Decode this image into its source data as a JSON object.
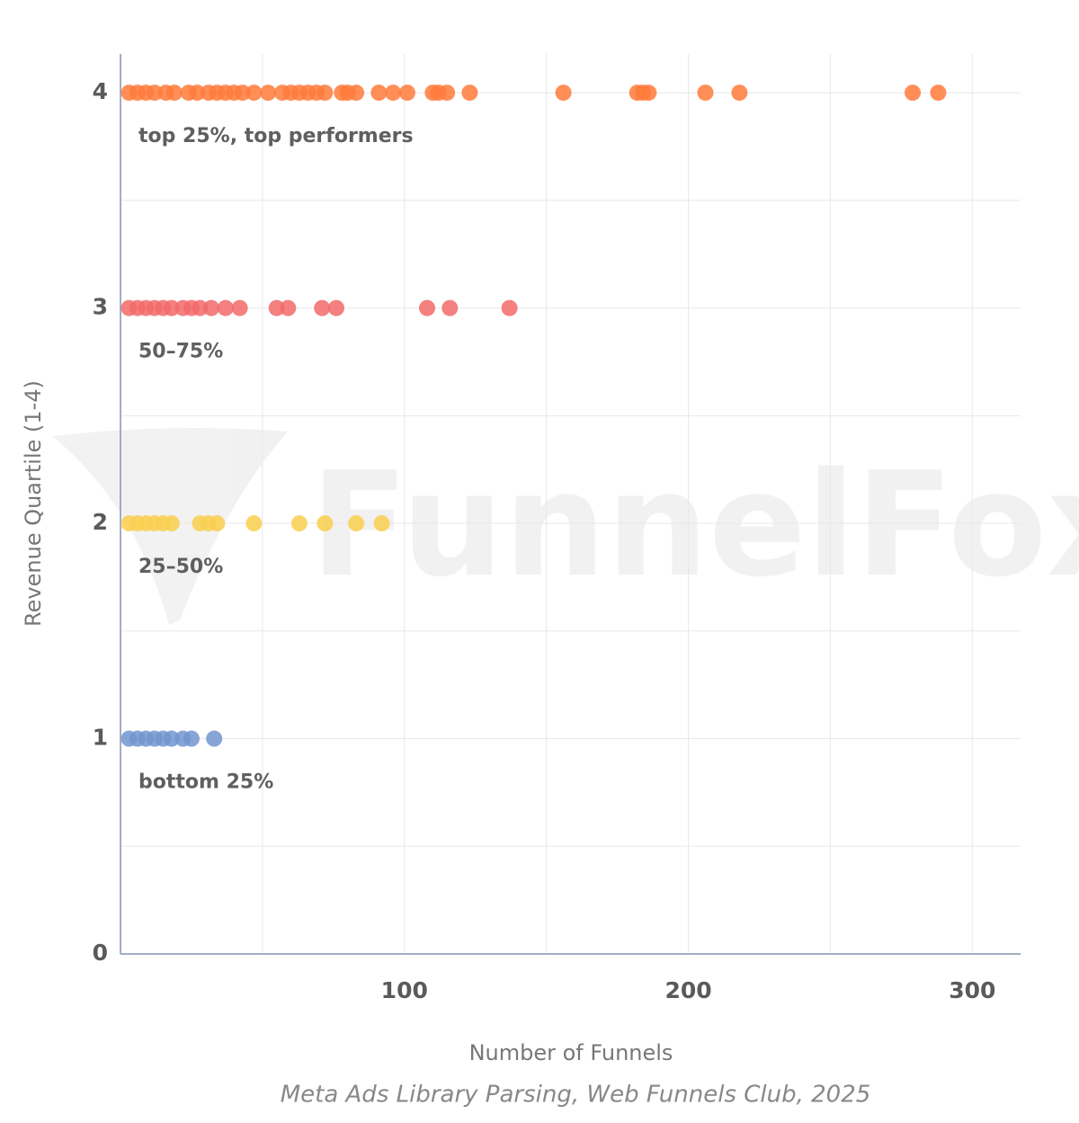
{
  "chart_data": {
    "type": "scatter",
    "xlabel": "Number of Funnels",
    "ylabel": "Revenue Quartile (1-4)",
    "source": "Meta Ads Library Parsing, Web Funnels Club, 2025",
    "watermark": "FunnelFox",
    "xlim": [
      0,
      317
    ],
    "xticks": [
      100,
      200,
      300
    ],
    "xgrid_ticks": [
      50,
      100,
      150,
      200,
      250,
      300
    ],
    "ylim": [
      0,
      4.18
    ],
    "yticks": [
      0,
      1,
      2,
      3,
      4
    ],
    "ygrid_ticks": [
      0.5,
      1,
      1.5,
      2,
      2.5,
      3,
      3.5,
      4
    ],
    "grid": true,
    "series": [
      {
        "label": "top 25%, top performers",
        "color": "#ff7a3a",
        "x": [
          3,
          6,
          9,
          12,
          16,
          19,
          24,
          27,
          31,
          34,
          37,
          40,
          43,
          47,
          52,
          57,
          60,
          63,
          66,
          69,
          72,
          78,
          80,
          83,
          91,
          96,
          101,
          110,
          112,
          115,
          123,
          156,
          182,
          184,
          186,
          206,
          218,
          279,
          288
        ],
        "values": [
          4,
          4,
          4,
          4,
          4,
          4,
          4,
          4,
          4,
          4,
          4,
          4,
          4,
          4,
          4,
          4,
          4,
          4,
          4,
          4,
          4,
          4,
          4,
          4,
          4,
          4,
          4,
          4,
          4,
          4,
          4,
          4,
          4,
          4,
          4,
          4,
          4,
          4,
          4
        ]
      },
      {
        "label": "50–75%",
        "color": "#f26a6a",
        "x": [
          3,
          6,
          9,
          12,
          15,
          18,
          22,
          25,
          28,
          32,
          37,
          42,
          55,
          59,
          71,
          76,
          108,
          116,
          137
        ],
        "values": [
          3,
          3,
          3,
          3,
          3,
          3,
          3,
          3,
          3,
          3,
          3,
          3,
          3,
          3,
          3,
          3,
          3,
          3,
          3
        ]
      },
      {
        "label": "25–50%",
        "color": "#f9cf4f",
        "x": [
          3,
          6,
          9,
          12,
          15,
          18,
          28,
          31,
          34,
          47,
          63,
          72,
          83,
          92
        ],
        "values": [
          2,
          2,
          2,
          2,
          2,
          2,
          2,
          2,
          2,
          2,
          2,
          2,
          2,
          2
        ]
      },
      {
        "label": "bottom 25%",
        "color": "#7295cf",
        "x": [
          3,
          6,
          9,
          12,
          15,
          18,
          22,
          25,
          33
        ],
        "values": [
          1,
          1,
          1,
          1,
          1,
          1,
          1,
          1,
          1
        ]
      }
    ]
  }
}
